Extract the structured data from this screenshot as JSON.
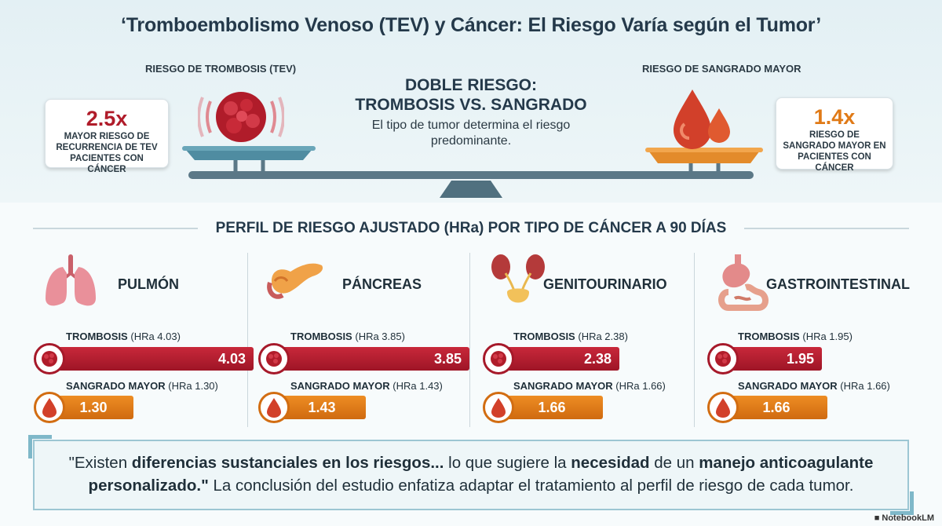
{
  "title": "‘Tromboembolismo Venoso (TEV) y Cáncer: El Riesgo Varía según el Tumor’",
  "header": {
    "left_label": "RIESGO DE TROMBOSIS (TEV)",
    "right_label": "RIESGO DE SANGRADO MAYOR",
    "center_heading_line1": "DOBLE RIESGO:",
    "center_heading_line2": "TROMBOSIS VS. SANGRADO",
    "center_sub": "El tipo de tumor determina el riesgo predominante.",
    "left_stat": {
      "value": "2.5x",
      "text": "MAYOR RIESGO DE RECURRENCIA DE TEV PACIENTES CON CÁNCER"
    },
    "right_stat": {
      "value": "1.4x",
      "text": "RIESGO DE SANGRADO MAYOR EN PACIENTES CON CÁNCER"
    }
  },
  "section_title": "PERFIL DE RIESGO AJUSTADO (HRa) POR TIPO DE CÁNCER A 90 DÍAS",
  "labels": {
    "thrombosis": "TROMBOSIS",
    "bleeding": "SANGRADO MAYOR"
  },
  "cancers": [
    {
      "name": "PULMÓN",
      "organ_icon": "lungs-icon",
      "thrombosis_hra": "(HRa 4.03)",
      "thrombosis_value": "4.03",
      "thrombosis_level": 4.03,
      "bleeding_hra": "(HRa 1.30)",
      "bleeding_value": "1.30",
      "bleeding_level": 1.3
    },
    {
      "name": "PÁNCREAS",
      "organ_icon": "pancreas-icon",
      "thrombosis_hra": "(HRa 3.85)",
      "thrombosis_value": "3.85",
      "thrombosis_level": 3.85,
      "bleeding_hra": "(HRa 1.43)",
      "bleeding_value": "1.43",
      "bleeding_level": 1.43
    },
    {
      "name": "GENITOURINARIO",
      "organ_icon": "kidneys-bladder-icon",
      "thrombosis_hra": "(HRa 2.38)",
      "thrombosis_value": "2.38",
      "thrombosis_level": 2.38,
      "bleeding_hra": "(HRa 1.66)",
      "bleeding_value": "1.66",
      "bleeding_level": 1.66
    },
    {
      "name": "GASTROINTESTINAL",
      "organ_icon": "stomach-intestine-icon",
      "thrombosis_hra": "(HRa 1.95)",
      "thrombosis_value": "1.95",
      "thrombosis_level": 1.95,
      "bleeding_hra": "(HRa 1.66)",
      "bleeding_value": "1.66",
      "bleeding_level": 1.66
    }
  ],
  "quote": {
    "p1": "\"Existen ",
    "b1": "diferencias sustanciales en los riesgos...",
    "p2": " lo que sugiere la ",
    "b2": "necesidad",
    "p3": " de un ",
    "b3": "manejo anticoagulante personalizado.\"",
    "p4": " La conclusión del estudio enfatiza adaptar el tratamiento al perfil de riesgo de cada tumor."
  },
  "brand": "NotebookLM",
  "colors": {
    "thrombosis": "#a6192a",
    "bleeding": "#e07a17",
    "accent": "#7fb8c9"
  }
}
